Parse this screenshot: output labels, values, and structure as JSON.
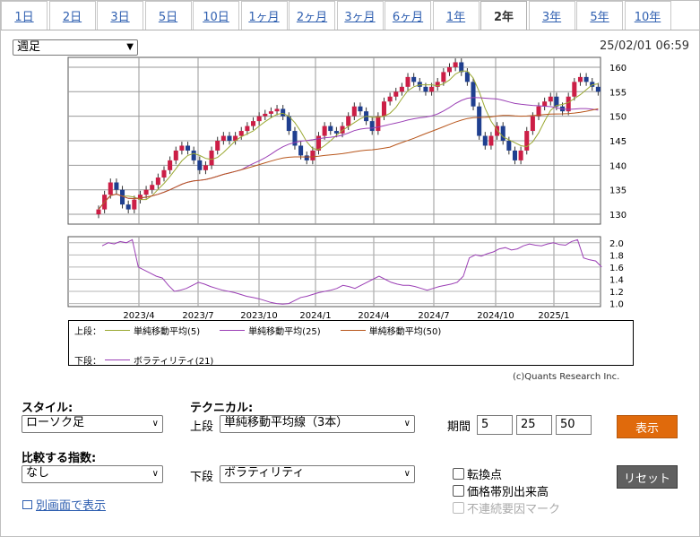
{
  "tabs": [
    {
      "label": "1日"
    },
    {
      "label": "2日"
    },
    {
      "label": "3日"
    },
    {
      "label": "5日"
    },
    {
      "label": "10日"
    },
    {
      "label": "1ヶ月"
    },
    {
      "label": "2ヶ月"
    },
    {
      "label": "3ヶ月"
    },
    {
      "label": "6ヶ月"
    },
    {
      "label": "1年"
    },
    {
      "label": "2年",
      "active": true
    },
    {
      "label": "3年"
    },
    {
      "label": "5年"
    },
    {
      "label": "10年"
    }
  ],
  "period_select": {
    "value": "週足"
  },
  "datetime": "25/02/01 06:59",
  "chart_data": {
    "type": "candlestick",
    "main": {
      "ylim": [
        128,
        162
      ],
      "y_ticks": [
        130,
        135,
        140,
        145,
        150,
        155,
        160
      ],
      "x_ticks": [
        "2023/4",
        "2023/7",
        "2023/10",
        "2024/1",
        "2024/4",
        "2024/7",
        "2024/10",
        "2025/1"
      ],
      "closes": [
        131,
        134,
        136.5,
        135,
        132,
        131,
        133,
        134,
        135,
        136,
        137.5,
        139,
        141,
        143,
        144,
        143,
        141,
        139,
        140,
        143,
        145,
        146,
        145,
        146,
        147,
        148,
        149,
        150,
        150.5,
        151,
        151.5,
        150,
        147,
        144,
        142,
        141,
        143,
        146,
        148,
        147,
        146.5,
        148,
        150,
        152,
        151,
        149,
        147,
        150,
        153,
        154,
        155,
        156,
        158,
        157,
        156,
        155,
        156,
        157,
        159,
        160,
        161,
        159,
        157,
        152,
        146,
        144,
        146,
        148,
        145,
        143,
        141,
        143,
        147,
        150,
        152,
        153,
        154,
        152,
        151,
        154,
        157,
        158,
        157,
        156,
        155
      ],
      "series": [
        {
          "name": "単純移動平均(5)",
          "color": "#9aa832"
        },
        {
          "name": "単純移動平均(25)",
          "color": "#9b3fb5"
        },
        {
          "name": "単純移動平均(50)",
          "color": "#b8561c"
        }
      ]
    },
    "sub": {
      "ylim": [
        0.95,
        2.1
      ],
      "y_ticks": [
        "1.0",
        "1.2",
        "1.4",
        "1.6",
        "1.8",
        "2.0"
      ],
      "series": [
        {
          "name": "ボラティリティ(21)",
          "color": "#9b3fb5",
          "values": [
            1.95,
            2.0,
            1.98,
            2.02,
            2.0,
            2.05,
            1.6,
            1.55,
            1.5,
            1.45,
            1.42,
            1.3,
            1.2,
            1.22,
            1.25,
            1.3,
            1.35,
            1.32,
            1.28,
            1.25,
            1.22,
            1.2,
            1.18,
            1.15,
            1.12,
            1.1,
            1.08,
            1.05,
            1.02,
            1.0,
            0.99,
            1.0,
            1.05,
            1.1,
            1.12,
            1.15,
            1.18,
            1.2,
            1.22,
            1.25,
            1.3,
            1.28,
            1.25,
            1.3,
            1.35,
            1.4,
            1.45,
            1.4,
            1.35,
            1.32,
            1.3,
            1.3,
            1.28,
            1.25,
            1.22,
            1.25,
            1.28,
            1.3,
            1.32,
            1.35,
            1.45,
            1.75,
            1.8,
            1.78,
            1.82,
            1.85,
            1.9,
            1.92,
            1.88,
            1.9,
            1.95,
            1.98,
            1.96,
            1.95,
            1.98,
            2.0,
            1.97,
            1.96,
            2.02,
            2.05,
            1.75,
            1.72,
            1.7,
            1.6
          ]
        }
      ]
    },
    "legend": {
      "upper_label": "上段：",
      "lower_label": "下段：",
      "upper": [
        {
          "name": "単純移動平均(5)",
          "color": "#9aa832"
        },
        {
          "name": "単純移動平均(25)",
          "color": "#9b3fb5"
        },
        {
          "name": "単純移動平均(50)",
          "color": "#b8561c"
        }
      ],
      "lower": [
        {
          "name": "ボラティリティ(21)",
          "color": "#9b3fb5"
        }
      ]
    },
    "colors": {
      "up": "#cc1e46",
      "down": "#1f3f8f"
    }
  },
  "credit": "(c)Quants Research Inc.",
  "controls": {
    "style_label": "スタイル:",
    "style_value": "ローソク足",
    "technical_label": "テクニカル:",
    "upper_label": "上段",
    "upper_value": "単純移動平均線（3本）",
    "period_label": "期間",
    "period_values": [
      "5",
      "25",
      "50"
    ],
    "show_button": "表示",
    "compare_label": "比較する指数:",
    "compare_value": "なし",
    "lower_label": "下段",
    "lower_value": "ボラティリティ",
    "reset_button": "リセット",
    "checkboxes": [
      {
        "label": "転換点",
        "disabled": false
      },
      {
        "label": "価格帯別出来高",
        "disabled": false
      },
      {
        "label": "不連続要因マーク",
        "disabled": true
      }
    ],
    "popup_link": "別画面で表示"
  }
}
